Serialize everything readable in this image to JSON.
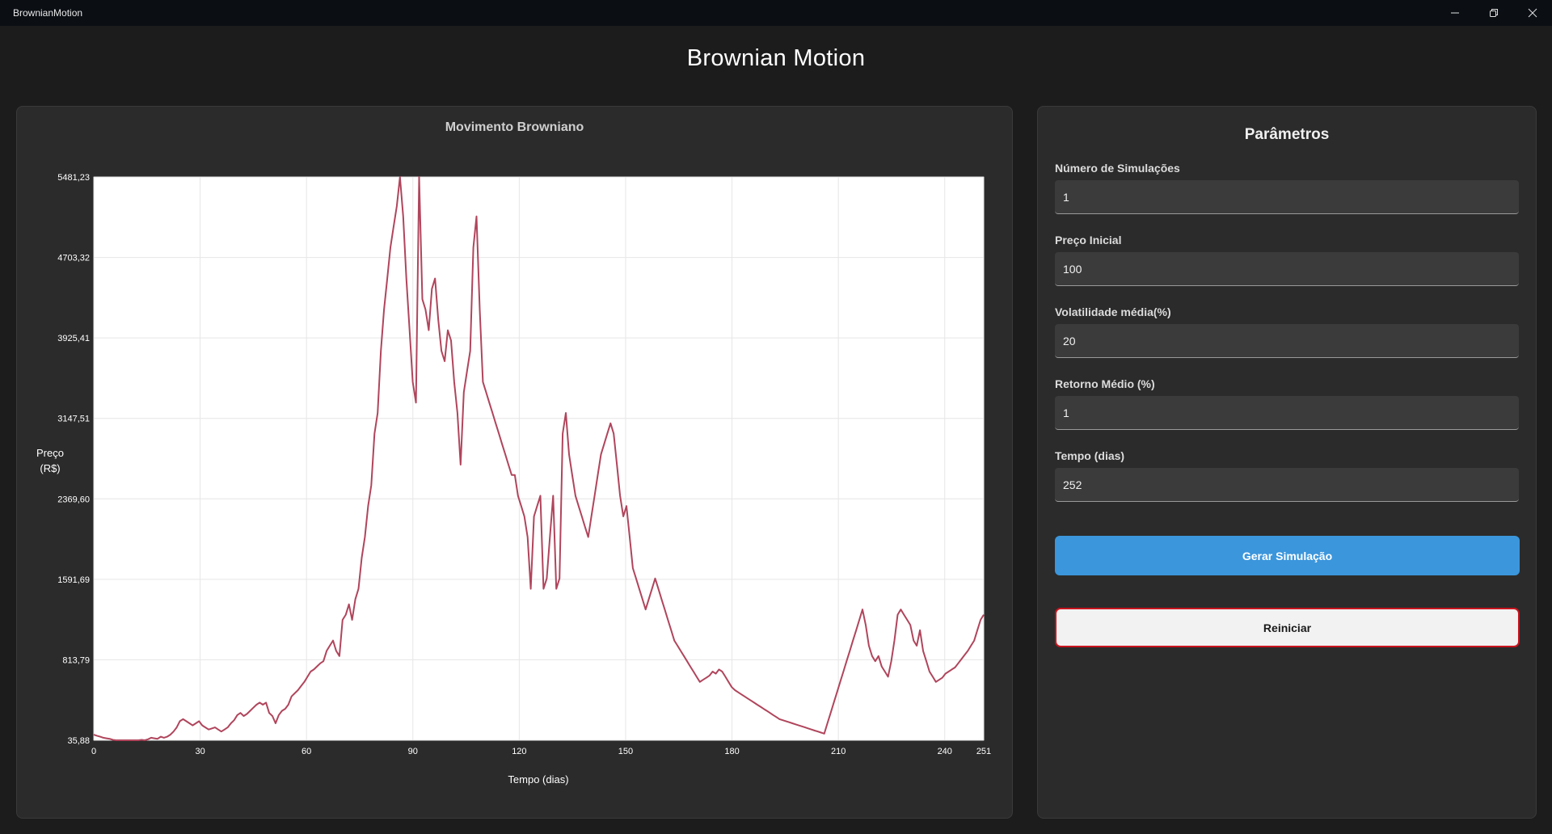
{
  "window": {
    "title": "BrownianMotion"
  },
  "header": {
    "title": "Brownian Motion"
  },
  "chart_panel": {
    "title": "Movimento Browniano"
  },
  "params": {
    "title": "Parâmetros",
    "fields": [
      {
        "label": "Número de Simulações",
        "value": "1"
      },
      {
        "label": "Preço Inicial",
        "value": "100"
      },
      {
        "label": "Volatilidade média(%)",
        "value": "20"
      },
      {
        "label": "Retorno Médio (%)",
        "value": "1"
      },
      {
        "label": "Tempo (dias)",
        "value": "252"
      }
    ],
    "generate_label": "Gerar Simulação",
    "reset_label": "Reiniciar"
  },
  "colors": {
    "series": "#b0455c",
    "generate_button": "#3b96dc",
    "reset_border": "#c8141e"
  },
  "icons": [
    "minimize-icon",
    "restore-icon",
    "close-icon"
  ],
  "chart_data": {
    "type": "line",
    "title": "Movimento Browniano",
    "xlabel": "Tempo (dias)",
    "ylabel_lines": [
      "Preço",
      "(R$)"
    ],
    "xlim": [
      0,
      251
    ],
    "ylim": [
      35.88,
      5481.23
    ],
    "x_ticks": [
      0,
      30,
      60,
      90,
      120,
      150,
      180,
      210,
      240,
      251
    ],
    "y_ticks": [
      "5481,23",
      "4703,32",
      "3925,41",
      "3147,51",
      "2369,60",
      "1591,69",
      "813,79",
      "35,88"
    ],
    "grid": true,
    "series": [
      {
        "values": [
          90,
          80,
          70,
          60,
          55,
          50,
          40,
          30,
          20,
          15,
          10,
          12,
          20,
          35,
          30,
          40,
          35,
          45,
          60,
          55,
          50,
          70,
          60,
          70,
          90,
          120,
          160,
          220,
          240,
          220,
          200,
          180,
          200,
          220,
          180,
          160,
          140,
          150,
          160,
          140,
          120,
          140,
          160,
          200,
          230,
          280,
          300,
          270,
          290,
          320,
          350,
          380,
          400,
          380,
          400,
          300,
          270,
          200,
          280,
          320,
          340,
          380,
          460,
          490,
          520,
          560,
          600,
          650,
          700,
          720,
          750,
          780,
          800,
          900,
          950,
          1000,
          900,
          850,
          1200,
          1250,
          1350,
          1200,
          1400,
          1500,
          1800,
          2000,
          2300,
          2500,
          3000,
          3200,
          3800,
          4200,
          4500,
          4800,
          5000,
          5200,
          5481,
          5100,
          4500,
          4000,
          3500,
          3300,
          5481,
          4300,
          4200,
          4000,
          4400,
          4500,
          4100,
          3800,
          3700,
          4000,
          3900,
          3500,
          3200,
          2700,
          3400,
          3600,
          3800,
          4800,
          5100,
          4200,
          3500,
          3400,
          3300,
          3200,
          3100,
          3000,
          2900,
          2800,
          2700,
          2600,
          2600,
          2400,
          2300,
          2200,
          2000,
          1500,
          2200,
          2300,
          2400,
          1500,
          1600,
          2000,
          2400,
          1500,
          1600,
          3000,
          3200,
          2800,
          2600,
          2400,
          2300,
          2200,
          2100,
          2000,
          2200,
          2400,
          2600,
          2800,
          2900,
          3000,
          3100,
          3000,
          2700,
          2400,
          2200,
          2300,
          2000,
          1700,
          1600,
          1500,
          1400,
          1300,
          1400,
          1500,
          1600,
          1500,
          1400,
          1300,
          1200,
          1100,
          1000,
          950,
          900,
          850,
          800,
          750,
          700,
          650,
          600,
          620,
          640,
          660,
          700,
          680,
          720,
          700,
          650,
          600,
          550,
          520,
          500,
          480,
          460,
          440,
          420,
          400,
          380,
          360,
          340,
          320,
          300,
          280,
          260,
          240,
          230,
          220,
          210,
          200,
          190,
          180,
          170,
          160,
          150,
          140,
          130,
          120,
          110,
          100,
          200,
          300,
          400,
          500,
          600,
          700,
          800,
          900,
          1000,
          1100,
          1200,
          1300,
          1150,
          950,
          850,
          800,
          850,
          750,
          700,
          650,
          800,
          1000,
          1250,
          1300,
          1250,
          1200,
          1150,
          1000,
          950,
          1100,
          900,
          800,
          700,
          650,
          600,
          620,
          640,
          680,
          700,
          720,
          740,
          780,
          820,
          860,
          900,
          950,
          1000,
          1100,
          1200,
          1250
        ]
      }
    ]
  }
}
